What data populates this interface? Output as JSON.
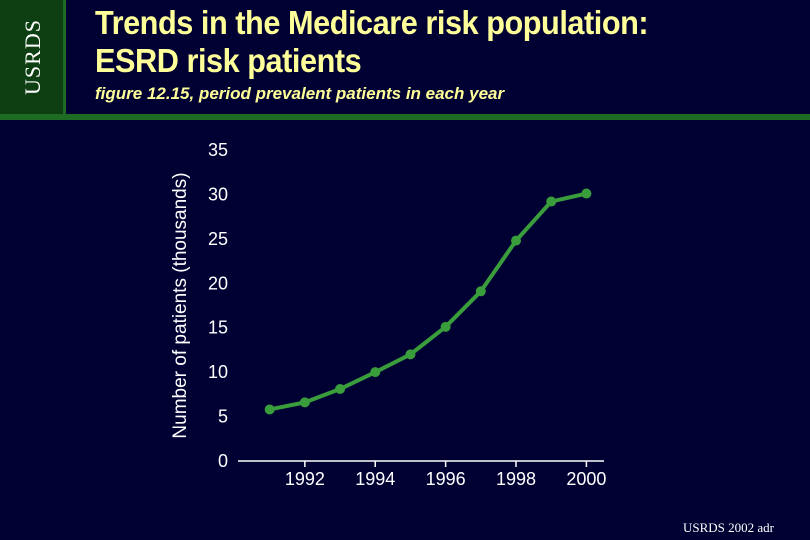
{
  "slide": {
    "logo": "USRDS",
    "title_line1": "Trends in the Medicare risk population:",
    "title_line2": "ESRD risk patients",
    "subtitle": "figure 12.15, period prevalent patients in each year",
    "footer": "USRDS 2002 adr"
  },
  "colors": {
    "background": "#000033",
    "title": "#ffff99",
    "series": "#3a9d3c",
    "logo_box": "#0d3f12"
  },
  "chart_data": {
    "type": "line",
    "title": "",
    "xlabel": "",
    "ylabel": "Number of patients (thousands)",
    "x": [
      1991,
      1992,
      1993,
      1994,
      1995,
      1996,
      1997,
      1998,
      1999,
      2000
    ],
    "series": [
      {
        "name": "ESRD risk patients",
        "values": [
          5.8,
          6.6,
          8.1,
          10.0,
          12.0,
          15.1,
          19.1,
          24.8,
          29.2,
          30.1
        ]
      }
    ],
    "xlim": [
      1990.1,
      2000.5
    ],
    "ylim": [
      0,
      35
    ],
    "yticks": [
      0,
      5,
      10,
      15,
      20,
      25,
      30,
      35
    ],
    "xticks": [
      1992,
      1994,
      1996,
      1998,
      2000
    ],
    "xtick_labels": [
      "1992",
      "1994",
      "1996",
      "1998",
      "2000"
    ],
    "ytick_labels": [
      "0",
      "5",
      "10",
      "15",
      "20",
      "25",
      "30",
      "35"
    ],
    "grid": false
  }
}
